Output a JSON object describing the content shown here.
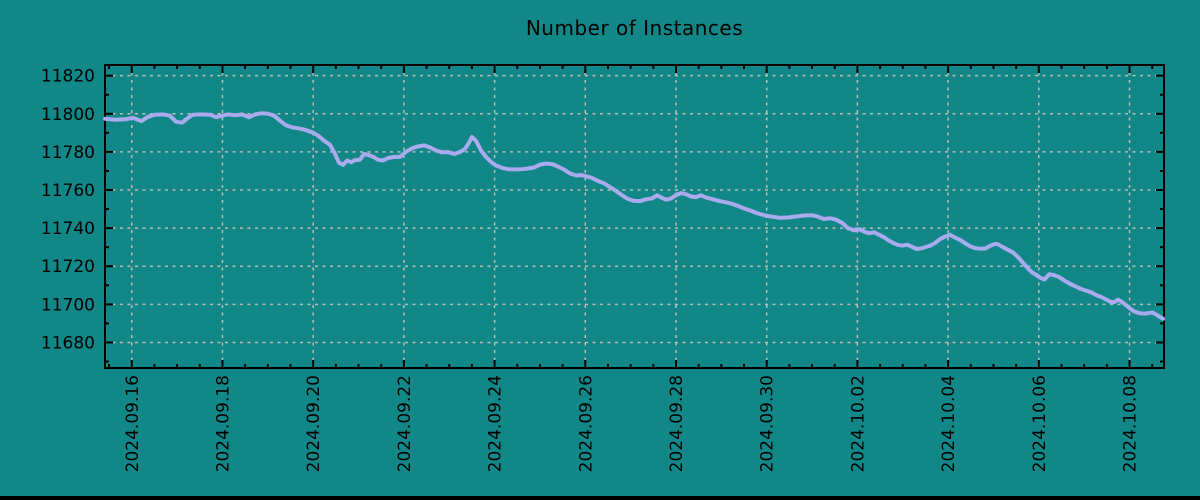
{
  "colors": {
    "background": "#118787",
    "line": "#AAAAEE",
    "grid": "#C0BDB8",
    "axis": "#000000",
    "text": "#000000",
    "bottom_bar": "#000000"
  },
  "chart_data": {
    "type": "line",
    "title": "Number of Instances",
    "xlabel": "",
    "ylabel": "",
    "x_unit": "days since 2024-09-16 00:00",
    "xlim": [
      -0.59,
      22.76
    ],
    "ylim": [
      11666.6,
      11825.6
    ],
    "grid": true,
    "legend": "none",
    "x_major_ticks": [
      {
        "t": 0,
        "label": "2024.09.16"
      },
      {
        "t": 2,
        "label": "2024.09.18"
      },
      {
        "t": 4,
        "label": "2024.09.20"
      },
      {
        "t": 6,
        "label": "2024.09.22"
      },
      {
        "t": 8,
        "label": "2024.09.24"
      },
      {
        "t": 10,
        "label": "2024.09.26"
      },
      {
        "t": 12,
        "label": "2024.09.28"
      },
      {
        "t": 14,
        "label": "2024.09.30"
      },
      {
        "t": 16,
        "label": "2024.10.02"
      },
      {
        "t": 18,
        "label": "2024.10.04"
      },
      {
        "t": 20,
        "label": "2024.10.06"
      },
      {
        "t": 22,
        "label": "2024.10.08"
      }
    ],
    "x_minor_step": 0.5,
    "y_major_ticks": [
      11680,
      11700,
      11720,
      11740,
      11760,
      11780,
      11800,
      11820
    ],
    "y_minor_step": 10,
    "series": [
      {
        "name": "instances",
        "points": [
          [
            -0.59,
            11797.4
          ],
          [
            -0.37,
            11796.9
          ],
          [
            -0.15,
            11797.1
          ],
          [
            0.03,
            11797.9
          ],
          [
            0.21,
            11796.1
          ],
          [
            0.36,
            11798.4
          ],
          [
            0.51,
            11799.5
          ],
          [
            0.69,
            11799.7
          ],
          [
            0.84,
            11799.0
          ],
          [
            0.98,
            11795.8
          ],
          [
            1.11,
            11795.3
          ],
          [
            1.24,
            11797.9
          ],
          [
            1.35,
            11799.5
          ],
          [
            1.51,
            11799.7
          ],
          [
            1.73,
            11799.5
          ],
          [
            1.86,
            11798.2
          ],
          [
            1.99,
            11799.0
          ],
          [
            2.12,
            11799.7
          ],
          [
            2.28,
            11799.2
          ],
          [
            2.43,
            11799.7
          ],
          [
            2.59,
            11798.2
          ],
          [
            2.72,
            11799.7
          ],
          [
            2.87,
            11800.3
          ],
          [
            3.01,
            11800.0
          ],
          [
            3.14,
            11799.0
          ],
          [
            3.27,
            11796.3
          ],
          [
            3.4,
            11794.0
          ],
          [
            3.53,
            11792.9
          ],
          [
            3.67,
            11792.4
          ],
          [
            3.82,
            11791.6
          ],
          [
            3.98,
            11790.3
          ],
          [
            4.11,
            11788.5
          ],
          [
            4.24,
            11785.8
          ],
          [
            4.37,
            11783.7
          ],
          [
            4.48,
            11779.0
          ],
          [
            4.57,
            11774.3
          ],
          [
            4.66,
            11773.2
          ],
          [
            4.75,
            11775.5
          ],
          [
            4.84,
            11774.6
          ],
          [
            4.92,
            11775.7
          ],
          [
            5.03,
            11775.9
          ],
          [
            5.12,
            11778.9
          ],
          [
            5.21,
            11778.4
          ],
          [
            5.32,
            11777.5
          ],
          [
            5.43,
            11775.9
          ],
          [
            5.54,
            11775.5
          ],
          [
            5.65,
            11776.8
          ],
          [
            5.78,
            11777.3
          ],
          [
            5.92,
            11777.5
          ],
          [
            6.05,
            11780.1
          ],
          [
            6.18,
            11781.9
          ],
          [
            6.31,
            11782.9
          ],
          [
            6.45,
            11783.4
          ],
          [
            6.58,
            11782.3
          ],
          [
            6.71,
            11780.8
          ],
          [
            6.84,
            11779.8
          ],
          [
            6.97,
            11779.9
          ],
          [
            7.11,
            11778.9
          ],
          [
            7.24,
            11780.0
          ],
          [
            7.35,
            11781.6
          ],
          [
            7.44,
            11785.0
          ],
          [
            7.5,
            11787.8
          ],
          [
            7.59,
            11785.9
          ],
          [
            7.7,
            11780.8
          ],
          [
            7.81,
            11777.3
          ],
          [
            7.92,
            11774.7
          ],
          [
            8.03,
            11772.9
          ],
          [
            8.17,
            11771.6
          ],
          [
            8.3,
            11770.9
          ],
          [
            8.45,
            11770.8
          ],
          [
            8.61,
            11770.9
          ],
          [
            8.74,
            11771.3
          ],
          [
            8.87,
            11771.8
          ],
          [
            9.0,
            11773.3
          ],
          [
            9.14,
            11773.9
          ],
          [
            9.27,
            11773.6
          ],
          [
            9.4,
            11772.3
          ],
          [
            9.53,
            11770.7
          ],
          [
            9.66,
            11768.7
          ],
          [
            9.8,
            11767.6
          ],
          [
            9.91,
            11767.9
          ],
          [
            10.02,
            11767.2
          ],
          [
            10.15,
            11766.3
          ],
          [
            10.28,
            11764.8
          ],
          [
            10.41,
            11763.6
          ],
          [
            10.55,
            11761.5
          ],
          [
            10.68,
            11759.5
          ],
          [
            10.81,
            11757.3
          ],
          [
            10.94,
            11755.3
          ],
          [
            11.08,
            11754.3
          ],
          [
            11.21,
            11754.2
          ],
          [
            11.34,
            11755.2
          ],
          [
            11.47,
            11755.6
          ],
          [
            11.58,
            11757.2
          ],
          [
            11.69,
            11755.9
          ],
          [
            11.78,
            11754.9
          ],
          [
            11.89,
            11755.6
          ],
          [
            12.0,
            11757.3
          ],
          [
            12.11,
            11758.4
          ],
          [
            12.22,
            11757.8
          ],
          [
            12.33,
            11756.6
          ],
          [
            12.44,
            11756.3
          ],
          [
            12.55,
            11757.2
          ],
          [
            12.66,
            11756.1
          ],
          [
            12.8,
            11755.2
          ],
          [
            12.95,
            11754.3
          ],
          [
            13.11,
            11753.5
          ],
          [
            13.26,
            11752.6
          ],
          [
            13.39,
            11751.4
          ],
          [
            13.52,
            11750.2
          ],
          [
            13.68,
            11748.9
          ],
          [
            13.81,
            11747.7
          ],
          [
            13.97,
            11746.6
          ],
          [
            14.12,
            11746.0
          ],
          [
            14.3,
            11745.4
          ],
          [
            14.47,
            11745.6
          ],
          [
            14.65,
            11746.1
          ],
          [
            14.82,
            11746.6
          ],
          [
            15.0,
            11746.8
          ],
          [
            15.13,
            11746.0
          ],
          [
            15.26,
            11744.8
          ],
          [
            15.4,
            11745.2
          ],
          [
            15.53,
            11744.4
          ],
          [
            15.66,
            11742.8
          ],
          [
            15.79,
            11740.0
          ],
          [
            15.93,
            11738.8
          ],
          [
            16.04,
            11739.5
          ],
          [
            16.15,
            11738.2
          ],
          [
            16.26,
            11737.3
          ],
          [
            16.37,
            11737.8
          ],
          [
            16.48,
            11736.5
          ],
          [
            16.59,
            11735.2
          ],
          [
            16.66,
            11734.0
          ],
          [
            16.77,
            11732.5
          ],
          [
            16.88,
            11731.3
          ],
          [
            16.99,
            11730.8
          ],
          [
            17.1,
            11731.3
          ],
          [
            17.21,
            11730.1
          ],
          [
            17.32,
            11729.0
          ],
          [
            17.43,
            11729.5
          ],
          [
            17.6,
            11730.8
          ],
          [
            17.71,
            11732.2
          ],
          [
            17.82,
            11734.2
          ],
          [
            17.93,
            11735.5
          ],
          [
            18.04,
            11736.5
          ],
          [
            18.15,
            11735.1
          ],
          [
            18.27,
            11733.7
          ],
          [
            18.38,
            11732.0
          ],
          [
            18.49,
            11730.4
          ],
          [
            18.6,
            11729.5
          ],
          [
            18.71,
            11729.2
          ],
          [
            18.82,
            11729.3
          ],
          [
            18.93,
            11730.7
          ],
          [
            19.04,
            11731.8
          ],
          [
            19.1,
            11731.5
          ],
          [
            19.21,
            11730.0
          ],
          [
            19.32,
            11728.6
          ],
          [
            19.43,
            11727.2
          ],
          [
            19.54,
            11724.8
          ],
          [
            19.65,
            11721.8
          ],
          [
            19.76,
            11718.9
          ],
          [
            19.85,
            11716.8
          ],
          [
            19.94,
            11715.5
          ],
          [
            20.03,
            11714.0
          ],
          [
            20.12,
            11713.0
          ],
          [
            20.23,
            11715.8
          ],
          [
            20.34,
            11715.3
          ],
          [
            20.43,
            11714.5
          ],
          [
            20.51,
            11713.3
          ],
          [
            20.6,
            11712.0
          ],
          [
            20.71,
            11710.5
          ],
          [
            20.82,
            11709.3
          ],
          [
            20.93,
            11708.1
          ],
          [
            21.04,
            11707.2
          ],
          [
            21.15,
            11706.3
          ],
          [
            21.26,
            11704.9
          ],
          [
            21.37,
            11703.9
          ],
          [
            21.48,
            11702.6
          ],
          [
            21.59,
            11701.3
          ],
          [
            21.66,
            11701.2
          ],
          [
            21.75,
            11702.4
          ],
          [
            21.84,
            11701.2
          ],
          [
            21.92,
            11699.6
          ],
          [
            22.01,
            11697.8
          ],
          [
            22.1,
            11696.3
          ],
          [
            22.21,
            11695.4
          ],
          [
            22.32,
            11695.1
          ],
          [
            22.41,
            11695.4
          ],
          [
            22.5,
            11695.8
          ],
          [
            22.59,
            11694.6
          ],
          [
            22.68,
            11693.2
          ],
          [
            22.74,
            11692.4
          ]
        ]
      }
    ]
  }
}
